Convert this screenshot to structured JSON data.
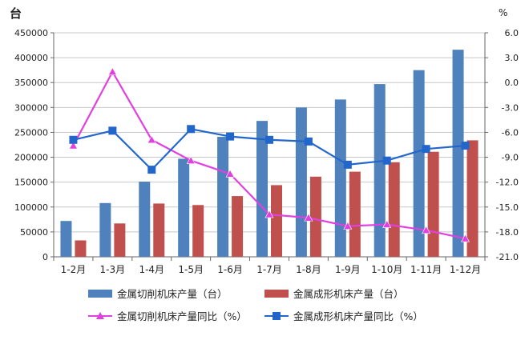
{
  "chart_data": {
    "type": "bar",
    "left_unit": "台",
    "right_unit": "%",
    "categories": [
      "1-2月",
      "1-3月",
      "1-4月",
      "1-5月",
      "1-6月",
      "1-7月",
      "1-8月",
      "1-9月",
      "1-10月",
      "1-11月",
      "1-12月"
    ],
    "y_left": {
      "ylim": [
        0,
        450000
      ],
      "ticks": [
        0,
        50000,
        100000,
        150000,
        200000,
        250000,
        300000,
        350000,
        400000,
        450000
      ]
    },
    "y_right": {
      "ylim": [
        -21.0,
        6.0
      ],
      "ticks": [
        "-21.0",
        "-18.0",
        "-15.0",
        "-12.0",
        "-9.0",
        "-6.0",
        "-3.0",
        "0.0",
        "3.0",
        "6.0"
      ]
    },
    "series": [
      {
        "name": "金属切削机床产量（台）",
        "kind": "bar",
        "axis": "left",
        "color": "#4f81bd",
        "values": [
          72000,
          108000,
          151000,
          197000,
          241000,
          273000,
          300000,
          316000,
          347000,
          375000,
          416000
        ]
      },
      {
        "name": "金属成形机床产量（台）",
        "kind": "bar",
        "axis": "left",
        "color": "#c0504d",
        "values": [
          33000,
          67000,
          107000,
          104000,
          122000,
          144000,
          161000,
          171000,
          190000,
          211000,
          234000
        ]
      },
      {
        "name": "金属切削机床产量同比（%）",
        "kind": "line",
        "axis": "right",
        "color": "#e040e0",
        "marker": "triangle",
        "values": [
          -7.6,
          1.3,
          -6.9,
          -9.4,
          -11.0,
          -15.9,
          -16.3,
          -17.3,
          -17.1,
          -17.8,
          -18.8
        ]
      },
      {
        "name": "金属成形机床产量同比（%）",
        "kind": "line",
        "axis": "right",
        "color": "#2266cc",
        "marker": "square",
        "values": [
          -6.9,
          -5.8,
          -10.5,
          -5.6,
          -6.5,
          -6.9,
          -7.1,
          -9.9,
          -9.4,
          -8.0,
          -7.6
        ]
      }
    ],
    "grid": true,
    "legend_position": "bottom"
  }
}
